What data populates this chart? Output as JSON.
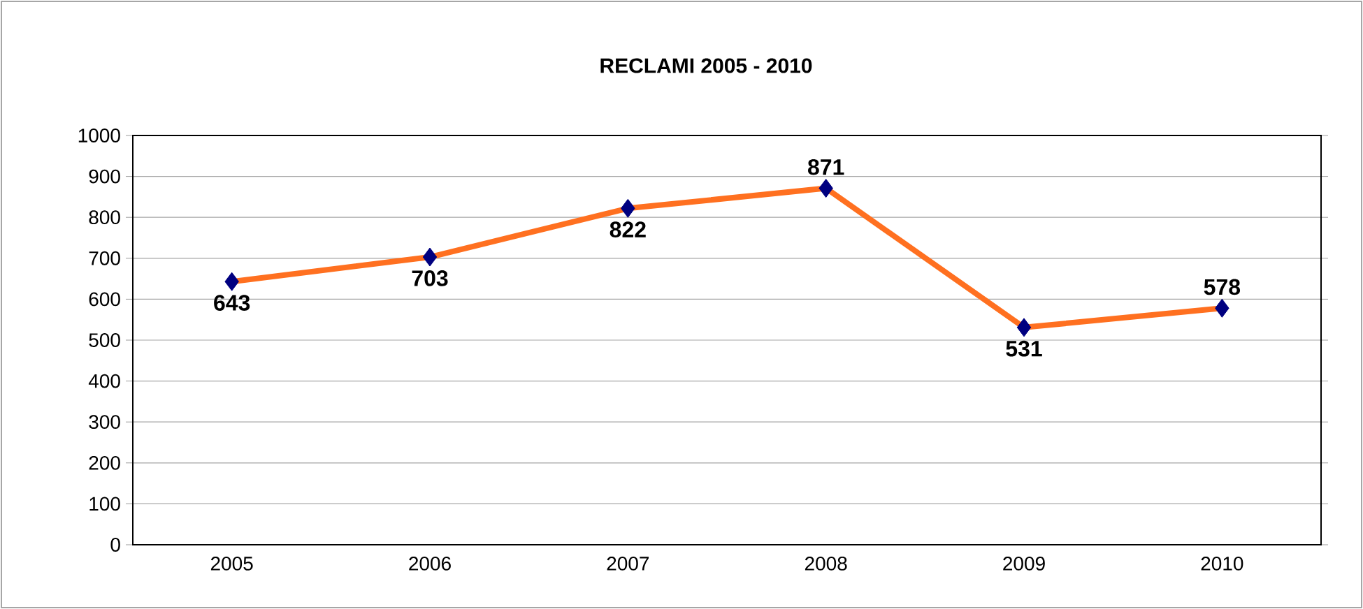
{
  "chart_data": {
    "type": "line",
    "title": "RECLAMI  2005 - 2010",
    "categories": [
      "2005",
      "2006",
      "2007",
      "2008",
      "2009",
      "2010"
    ],
    "series": [
      {
        "color": "#ff7020",
        "colors": [
          "#000080",
          "#000080",
          "#000080",
          "#000080",
          "#000080",
          "#000080"
        ],
        "values": [
          643,
          703,
          822,
          871,
          531,
          578
        ]
      }
    ],
    "marker": "diamond",
    "line_style": "solid",
    "ylim": [
      0,
      1000
    ],
    "yticks": [
      0,
      100,
      200,
      300,
      400,
      500,
      600,
      700,
      800,
      900,
      1000
    ],
    "grid": "y",
    "data_labels": true
  }
}
